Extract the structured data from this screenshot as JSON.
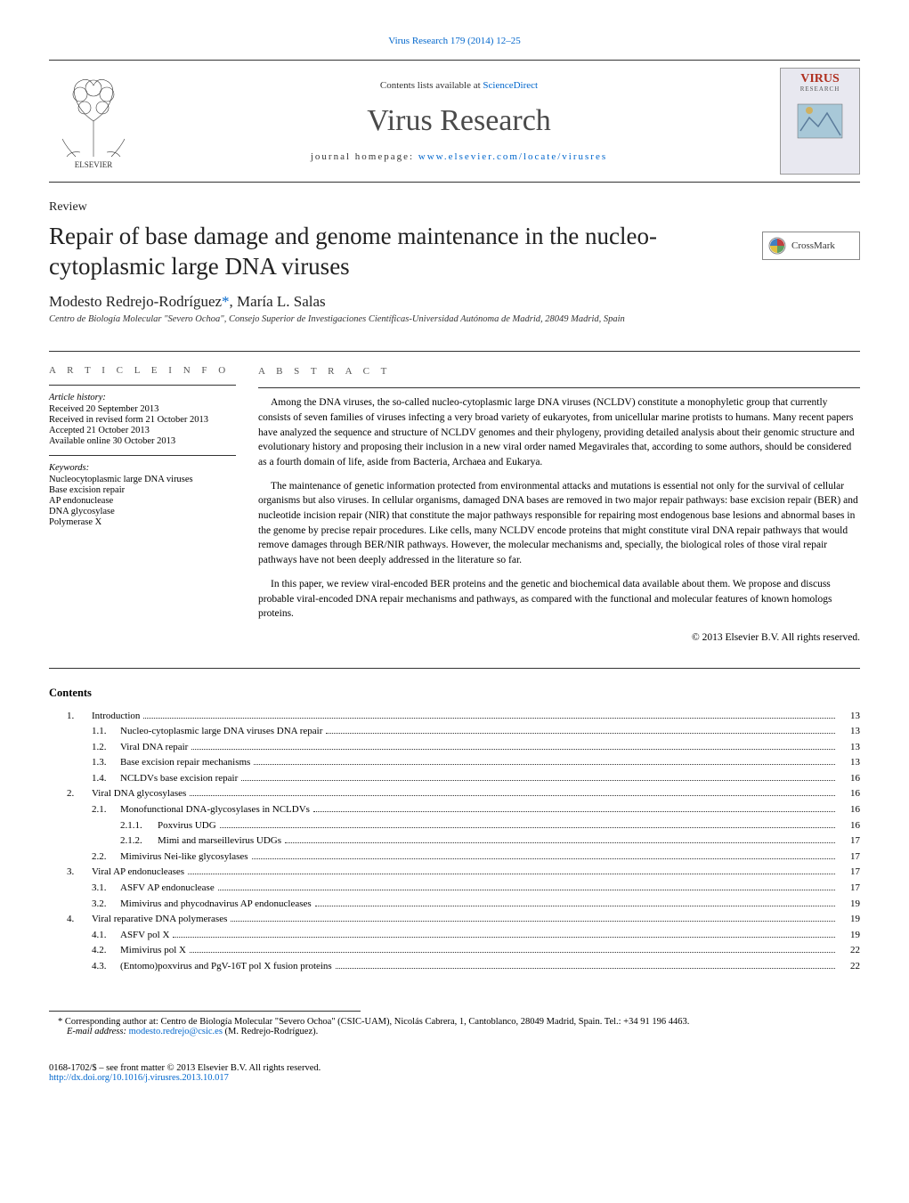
{
  "top_link": "Virus Research 179 (2014) 12–25",
  "header": {
    "contents_prefix": "Contents lists available at ",
    "contents_link": "ScienceDirect",
    "journal_name": "Virus Research",
    "homepage_prefix": "journal homepage: ",
    "homepage_url": "www.elsevier.com/locate/virusres",
    "cover_badge": "VIRUS",
    "cover_sub": "RESEARCH",
    "elsevier_label": "ELSEVIER"
  },
  "crossmark_label": "CrossMark",
  "review_label": "Review",
  "title": "Repair of base damage and genome maintenance in the nucleo-cytoplasmic large DNA viruses",
  "authors": "Modesto Redrejo-Rodríguez",
  "authors_rest": ", María L. Salas",
  "asterisk": "*",
  "affiliation": "Centro de Biología Molecular \"Severo Ochoa\", Consejo Superior de Investigaciones Científicas-Universidad Autónoma de Madrid, 28049 Madrid, Spain",
  "info": {
    "heading": "a r t i c l e   i n f o",
    "history_label": "Article history:",
    "history": [
      "Received 20 September 2013",
      "Received in revised form 21 October 2013",
      "Accepted 21 October 2013",
      "Available online 30 October 2013"
    ],
    "keywords_label": "Keywords:",
    "keywords": [
      "Nucleocytoplasmic large DNA viruses",
      "Base excision repair",
      "AP endonuclease",
      "DNA glycosylase",
      "Polymerase X"
    ]
  },
  "abstract": {
    "heading": "a b s t r a c t",
    "p1": "Among the DNA viruses, the so-called nucleo-cytoplasmic large DNA viruses (NCLDV) constitute a monophyletic group that currently consists of seven families of viruses infecting a very broad variety of eukaryotes, from unicellular marine protists to humans. Many recent papers have analyzed the sequence and structure of NCLDV genomes and their phylogeny, providing detailed analysis about their genomic structure and evolutionary history and proposing their inclusion in a new viral order named Megavirales that, according to some authors, should be considered as a fourth domain of life, aside from Bacteria, Archaea and Eukarya.",
    "p2": "The maintenance of genetic information protected from environmental attacks and mutations is essential not only for the survival of cellular organisms but also viruses. In cellular organisms, damaged DNA bases are removed in two major repair pathways: base excision repair (BER) and nucleotide incision repair (NIR) that constitute the major pathways responsible for repairing most endogenous base lesions and abnormal bases in the genome by precise repair procedures. Like cells, many NCLDV encode proteins that might constitute viral DNA repair pathways that would remove damages through BER/NIR pathways. However, the molecular mechanisms and, specially, the biological roles of those viral repair pathways have not been deeply addressed in the literature so far.",
    "p3": "In this paper, we review viral-encoded BER proteins and the genetic and biochemical data available about them. We propose and discuss probable viral-encoded DNA repair mechanisms and pathways, as compared with the functional and molecular features of known homologs proteins.",
    "copyright": "© 2013 Elsevier B.V. All rights reserved."
  },
  "contents_label": "Contents",
  "toc": [
    {
      "l": 1,
      "n": "1.",
      "t": "Introduction",
      "p": "13"
    },
    {
      "l": 2,
      "n": "1.1.",
      "t": "Nucleo-cytoplasmic large DNA viruses DNA repair",
      "p": "13"
    },
    {
      "l": 2,
      "n": "1.2.",
      "t": "Viral DNA repair",
      "p": "13"
    },
    {
      "l": 2,
      "n": "1.3.",
      "t": "Base excision repair mechanisms",
      "p": "13"
    },
    {
      "l": 2,
      "n": "1.4.",
      "t": "NCLDVs base excision repair",
      "p": "16"
    },
    {
      "l": 1,
      "n": "2.",
      "t": "Viral DNA glycosylases",
      "p": "16"
    },
    {
      "l": 2,
      "n": "2.1.",
      "t": "Monofunctional DNA-glycosylases in NCLDVs",
      "p": "16"
    },
    {
      "l": 3,
      "n": "2.1.1.",
      "t": "Poxvirus UDG",
      "p": "16"
    },
    {
      "l": 3,
      "n": "2.1.2.",
      "t": "Mimi and marseillevirus UDGs",
      "p": "17"
    },
    {
      "l": 2,
      "n": "2.2.",
      "t": "Mimivirus Nei-like glycosylases",
      "p": "17"
    },
    {
      "l": 1,
      "n": "3.",
      "t": "Viral AP endonucleases",
      "p": "17"
    },
    {
      "l": 2,
      "n": "3.1.",
      "t": "ASFV AP endonuclease",
      "p": "17"
    },
    {
      "l": 2,
      "n": "3.2.",
      "t": "Mimivirus and phycodnavirus AP endonucleases",
      "p": "19"
    },
    {
      "l": 1,
      "n": "4.",
      "t": "Viral reparative DNA polymerases",
      "p": "19"
    },
    {
      "l": 2,
      "n": "4.1.",
      "t": "ASFV pol X",
      "p": "19"
    },
    {
      "l": 2,
      "n": "4.2.",
      "t": "Mimivirus pol X",
      "p": "22"
    },
    {
      "l": 2,
      "n": "4.3.",
      "t": "(Entomo)poxvirus and PgV-16T pol X fusion proteins",
      "p": "22"
    }
  ],
  "footnote": {
    "corr": "Corresponding author at: Centro de Biología Molecular \"Severo Ochoa\" (CSIC-UAM), Nicolás Cabrera, 1, Cantoblanco, 28049 Madrid, Spain. Tel.: +34 91 196 4463.",
    "email_label": "E-mail address: ",
    "email": "modesto.redrejo@csic.es",
    "email_suffix": " (M. Redrejo-Rodríguez)."
  },
  "bottom": {
    "issn": "0168-1702/$ – see front matter © 2013 Elsevier B.V. All rights reserved.",
    "doi": "http://dx.doi.org/10.1016/j.virusres.2013.10.017"
  },
  "colors": {
    "link": "#0066cc",
    "title": "#222222",
    "virus_badge": "#b03020",
    "border": "#333333"
  }
}
